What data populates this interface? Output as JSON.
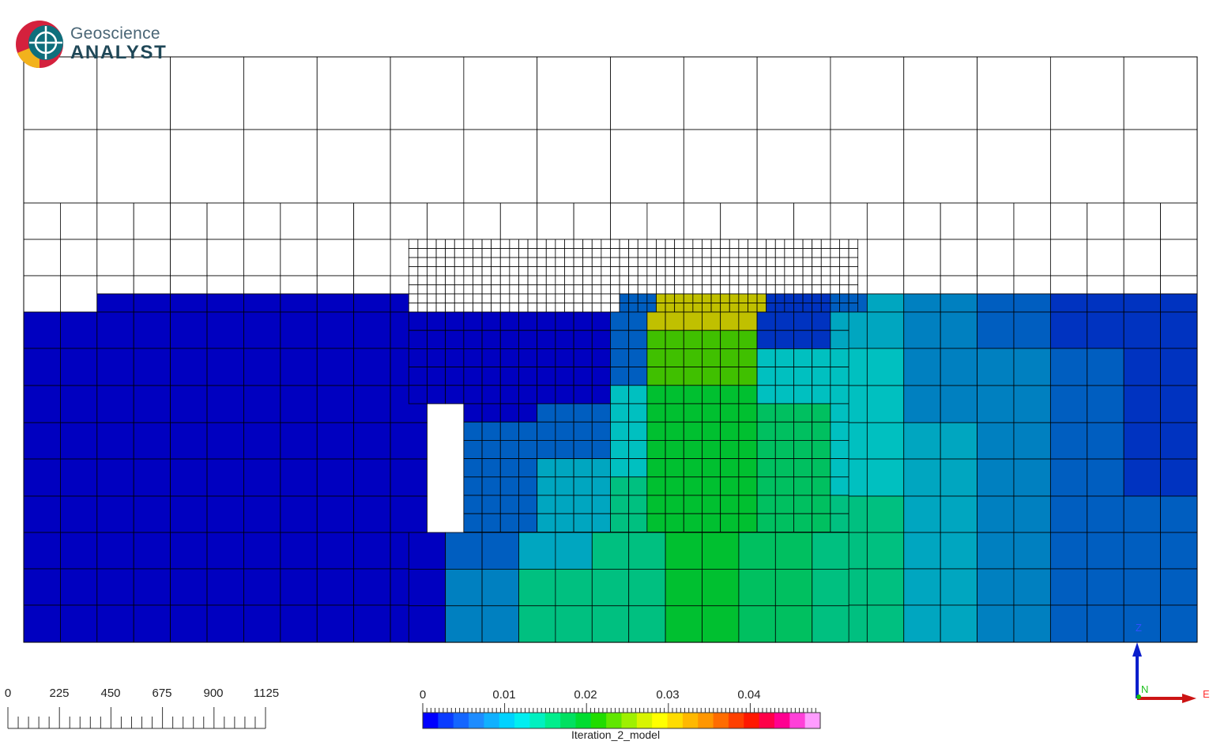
{
  "logo": {
    "line1": "Geoscience",
    "line2": "ANALYST"
  },
  "scale_bar": {
    "labels": [
      "0",
      "225",
      "450",
      "675",
      "900",
      "1125"
    ]
  },
  "colorbar": {
    "title": "Iteration_2_model",
    "tick_labels": [
      "0",
      "0.01",
      "0.02",
      "0.03",
      "0.04"
    ],
    "min": 0,
    "max": 0.0485,
    "colors": [
      "#0000ff",
      "#0a3cff",
      "#1466ff",
      "#1e8cff",
      "#10b0ff",
      "#00d2ff",
      "#00eef0",
      "#00f0c0",
      "#00ee8c",
      "#00e060",
      "#00dc30",
      "#20dc00",
      "#60e600",
      "#9ef000",
      "#d8f400",
      "#ffff00",
      "#ffdc00",
      "#ffb800",
      "#ff9600",
      "#ff6c00",
      "#ff4000",
      "#ff1800",
      "#ff0048",
      "#ff0090",
      "#ff40d8",
      "#ff9cff"
    ]
  },
  "axes_indicator": {
    "z_label": "Z",
    "n_label": "N",
    "e_label": "E"
  },
  "model_colors": {
    "empty": "#ffffff",
    "deep_blue": "#0000c0",
    "medium_blue": "#0033c0",
    "blue": "#005ec0",
    "light_blue": "#0080c0",
    "sky": "#00a6c0",
    "cyan": "#00c0c0",
    "teal": "#00c080",
    "green_teal": "#00c060",
    "green": "#00c030",
    "lime": "#40c000",
    "yellow": "#c0c000",
    "orange": "#d09000"
  }
}
